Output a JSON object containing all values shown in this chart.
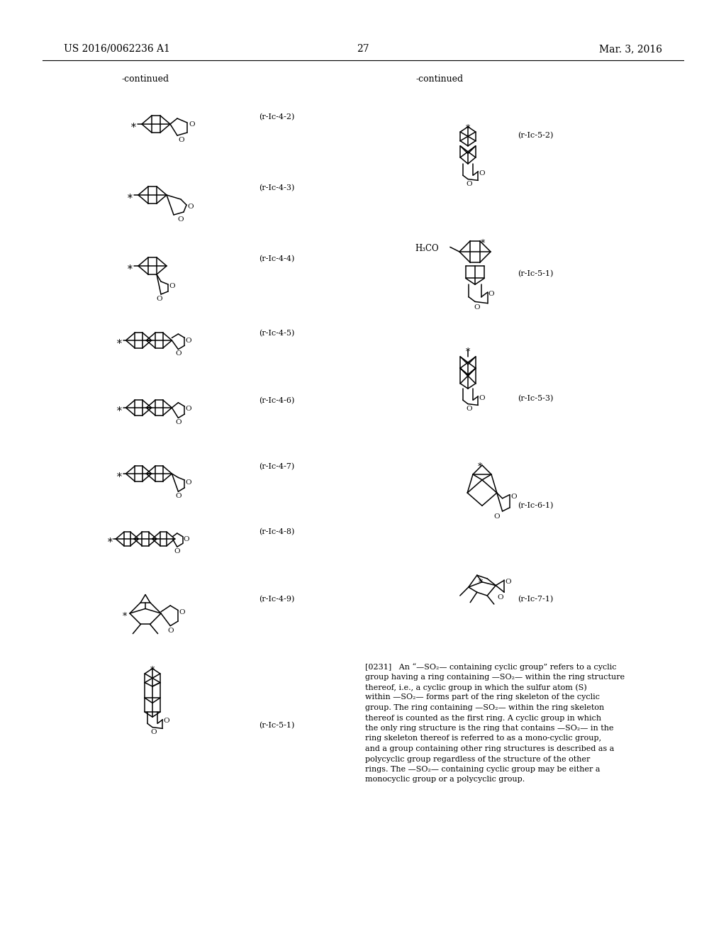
{
  "page_number": "27",
  "patent_number": "US 2016/0062236 A1",
  "date": "Mar. 3, 2016",
  "continued_left": "-continued",
  "continued_right": "-continued",
  "background_color": "#ffffff",
  "text_color": "#000000",
  "labels_left": [
    "(r-Ic-4-2)",
    "(r-Ic-4-3)",
    "(r-Ic-4-4)",
    "(r-Ic-4-5)",
    "(r-Ic-4-6)",
    "(r-Ic-4-7)",
    "(r-Ic-4-8)",
    "(r-Ic-4-9)",
    "(r-Ic-5-1)"
  ],
  "labels_right": [
    "(r-Ic-5-2)",
    "(r-Ic-5-1)",
    "(r-Ic-5-3)",
    "(r-Ic-6-1)",
    "(r-Ic-7-1)"
  ],
  "body_text": "[0231]   An “—SO₂— containing cyclic group” refers to a cyclic group having a ring containing —SO₂— within the ring structure thereof, i.e., a cyclic group in which the sulfur atom (S) within —SO₂— forms part of the ring skeleton of the cyclic group. The ring containing —SO₂— within the ring skeleton thereof is counted as the first ring. A cyclic group in which the only ring structure is the ring that contains —SO₂— in the ring skeleton thereof is referred to as a mono-cyclic group, and a group containing other ring structures is described as a polycyclic group regardless of the structure of the other rings. The —SO₂— containing cyclic group may be either a monocyclic group or a polycyclic group."
}
